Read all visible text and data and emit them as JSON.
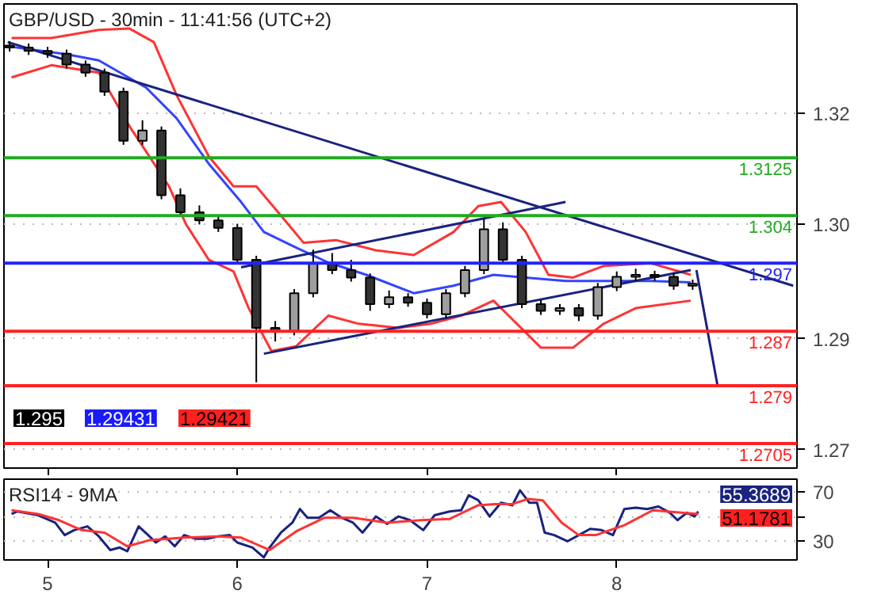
{
  "chart_data": [
    {
      "type": "candlestick",
      "title": "GBP/USD - 30min - 11:41:56 (UTC+2)",
      "x": [
        4.8,
        4.9,
        5.0,
        5.1,
        5.2,
        5.3,
        5.4,
        5.5,
        5.6,
        5.7,
        5.8,
        5.9,
        6.0,
        6.1,
        6.2,
        6.3,
        6.4,
        6.5,
        6.6,
        6.7,
        6.8,
        6.9,
        7.0,
        7.1,
        7.2,
        7.3,
        7.4,
        7.5,
        7.6,
        7.7,
        7.8,
        7.9,
        8.0,
        8.1,
        8.2,
        8.3,
        8.4
      ],
      "ohlc": [
        [
          1.329,
          1.3296,
          1.3281,
          1.3287
        ],
        [
          1.3287,
          1.3293,
          1.3276,
          1.3282
        ],
        [
          1.3282,
          1.3288,
          1.3272,
          1.3278
        ],
        [
          1.3278,
          1.3284,
          1.3256,
          1.3262
        ],
        [
          1.3262,
          1.3268,
          1.3244,
          1.325
        ],
        [
          1.325,
          1.3256,
          1.3216,
          1.3222
        ],
        [
          1.3222,
          1.3228,
          1.3144,
          1.315
        ],
        [
          1.315,
          1.318,
          1.3144,
          1.3165
        ],
        [
          1.3165,
          1.3171,
          1.3064,
          1.307
        ],
        [
          1.307,
          1.308,
          1.3039,
          1.3045
        ],
        [
          1.3045,
          1.3055,
          1.3027,
          1.3033
        ],
        [
          1.3033,
          1.3039,
          1.3016,
          1.3022
        ],
        [
          1.3022,
          1.3028,
          1.2969,
          1.2975
        ],
        [
          1.2975,
          1.2981,
          1.2795,
          1.2875
        ],
        [
          1.2875,
          1.2885,
          1.2855,
          1.287
        ],
        [
          1.287,
          1.2932,
          1.2864,
          1.2926
        ],
        [
          1.2926,
          1.299,
          1.292,
          1.297
        ],
        [
          1.297,
          1.2985,
          1.2954,
          1.296
        ],
        [
          1.296,
          1.2975,
          1.2943,
          1.2949
        ],
        [
          1.2949,
          1.2955,
          1.29,
          1.291
        ],
        [
          1.291,
          1.293,
          1.2904,
          1.292
        ],
        [
          1.292,
          1.2926,
          1.2906,
          1.2912
        ],
        [
          1.2912,
          1.2918,
          1.2889,
          1.2895
        ],
        [
          1.2895,
          1.2932,
          1.2889,
          1.2926
        ],
        [
          1.2926,
          1.2966,
          1.292,
          1.296
        ],
        [
          1.296,
          1.3035,
          1.2954,
          1.302
        ],
        [
          1.302,
          1.303,
          1.2969,
          1.2975
        ],
        [
          1.2975,
          1.2981,
          1.2904,
          1.291
        ],
        [
          1.291,
          1.2916,
          1.2894,
          1.29
        ],
        [
          1.29,
          1.291,
          1.2894,
          1.2904
        ],
        [
          1.2904,
          1.291,
          1.2885,
          1.2893
        ],
        [
          1.2893,
          1.2941,
          1.2887,
          1.2935
        ],
        [
          1.2935,
          1.2958,
          1.2929,
          1.295
        ],
        [
          1.295,
          1.2962,
          1.2944,
          1.2953
        ],
        [
          1.2953,
          1.2959,
          1.2944,
          1.295
        ],
        [
          1.295,
          1.2956,
          1.2931,
          1.2937
        ],
        [
          1.2937,
          1.2946,
          1.2931,
          1.294
        ]
      ],
      "series": [
        {
          "type": "line",
          "color": "#ff3333",
          "x": [
            4.81,
            5.02,
            5.27,
            5.43,
            5.56,
            5.68,
            5.85,
            5.98,
            6.1,
            6.23,
            6.35,
            6.52,
            6.73,
            6.93,
            7.14,
            7.27,
            7.39,
            7.52,
            7.64,
            7.77,
            7.93,
            8.18,
            8.39
          ],
          "values": [
            1.3301,
            1.3301,
            1.3313,
            1.3315,
            1.3295,
            1.3217,
            1.3127,
            1.3083,
            1.3083,
            1.304,
            1.3,
            1.3004,
            1.2989,
            1.2982,
            1.3016,
            1.3054,
            1.306,
            1.3016,
            1.2953,
            1.2949,
            1.2966,
            1.297,
            1.2953
          ]
        },
        {
          "type": "line",
          "color": "#ff3333",
          "x": [
            4.81,
            5.02,
            5.27,
            5.43,
            5.64,
            5.73,
            5.85,
            5.98,
            6.06,
            6.18,
            6.31,
            6.48,
            6.64,
            6.85,
            7.02,
            7.18,
            7.35,
            7.43,
            7.6,
            7.77,
            7.93,
            8.1,
            8.39
          ],
          "values": [
            1.3243,
            1.3261,
            1.325,
            1.3172,
            1.3083,
            1.3027,
            1.2975,
            1.2958,
            1.2904,
            1.2841,
            1.2848,
            1.2893,
            1.2881,
            1.2875,
            1.2881,
            1.2893,
            1.2915,
            1.2893,
            1.2846,
            1.2846,
            1.2881,
            1.2904,
            1.2915
          ]
        },
        {
          "type": "line",
          "color": "#3344ff",
          "x": [
            4.81,
            5.1,
            5.27,
            5.52,
            5.68,
            5.85,
            6.02,
            6.14,
            6.31,
            6.48,
            6.68,
            6.93,
            7.14,
            7.35,
            7.52,
            7.73,
            7.93,
            8.18,
            8.39
          ],
          "values": [
            1.3288,
            1.3277,
            1.3268,
            1.3228,
            1.3183,
            1.3116,
            1.306,
            1.3016,
            1.2993,
            1.2971,
            1.2953,
            1.2926,
            1.2937,
            1.2953,
            1.2949,
            1.2944,
            1.2944,
            1.2944,
            1.2942
          ]
        },
        {
          "type": "line",
          "color": "#1a237e",
          "x": [
            4.79,
            8.93
          ],
          "values": [
            1.3295,
            1.2937
          ]
        },
        {
          "type": "line",
          "color": "#1a237e",
          "x": [
            6.02,
            7.73
          ],
          "values": [
            1.2964,
            1.306
          ]
        },
        {
          "type": "line",
          "color": "#1a237e",
          "x": [
            6.14,
            8.39
          ],
          "values": [
            1.2837,
            1.296
          ]
        },
        {
          "type": "line",
          "color": "#1a237e",
          "x": [
            8.42,
            8.53
          ],
          "values": [
            1.296,
            1.2792
          ]
        }
      ],
      "ref_lines": [
        {
          "axis": "y",
          "value": 1.3125,
          "label": "1.3125",
          "color": "#22aa22"
        },
        {
          "axis": "y",
          "value": 1.304,
          "label": "1.304",
          "color": "#22aa22"
        },
        {
          "axis": "y",
          "value": 1.297,
          "label": "1.297",
          "color": "#2222ff"
        },
        {
          "axis": "y",
          "value": 1.287,
          "label": "1.287",
          "color": "#ff2222"
        },
        {
          "axis": "y",
          "value": 1.279,
          "label": "1.279",
          "color": "#ff2222"
        },
        {
          "axis": "y",
          "value": 1.2705,
          "label": "1.2705",
          "color": "#ff2222"
        }
      ],
      "annotations": [
        "1.295",
        "1.29431",
        "1.29421"
      ],
      "xlim": [
        4.77,
        8.95
      ],
      "ylim": [
        1.2669,
        1.3351
      ],
      "xticks": [
        5,
        6,
        7,
        8
      ],
      "yticks": [
        {
          "value": 1.319,
          "label": "1.32"
        },
        {
          "value": 1.3027,
          "label": "1.30"
        },
        {
          "value": 1.2859,
          "label": "1.29"
        },
        {
          "value": 1.2696,
          "label": "1.27"
        }
      ],
      "tick_labels": "y",
      "grid": "y"
    },
    {
      "type": "line",
      "title": "RSI14 - 9MA",
      "series": [
        {
          "type": "line",
          "color": "#1a237e",
          "x": [
            4.81,
            4.84,
            4.95,
            5.04,
            5.09,
            5.14,
            5.21,
            5.27,
            5.33,
            5.38,
            5.42,
            5.48,
            5.53,
            5.57,
            5.62,
            5.67,
            5.72,
            5.78,
            5.84,
            5.9,
            5.96,
            6.0,
            6.08,
            6.14,
            6.17,
            6.23,
            6.29,
            6.33,
            6.37,
            6.43,
            6.49,
            6.55,
            6.61,
            6.66,
            6.73,
            6.79,
            6.85,
            6.91,
            6.98,
            7.04,
            7.12,
            7.18,
            7.22,
            7.27,
            7.33,
            7.39,
            7.45,
            7.49,
            7.54,
            7.58,
            7.62,
            7.67,
            7.74,
            7.8,
            7.86,
            7.92,
            7.98,
            8.04,
            8.1,
            8.16,
            8.22,
            8.28,
            8.32,
            8.37,
            8.41,
            8.43
          ],
          "values": [
            52,
            54,
            51,
            45,
            35,
            39,
            42,
            34,
            23,
            25,
            22,
            42,
            35,
            29,
            34,
            26,
            35,
            32,
            32,
            34,
            35,
            29,
            25,
            17,
            25,
            37,
            45,
            56,
            49,
            49,
            55,
            49,
            45,
            37,
            50,
            44,
            50,
            47,
            39,
            51,
            54,
            55,
            67,
            63,
            50,
            61,
            59,
            71,
            61,
            61,
            37,
            35,
            30,
            35,
            40,
            39,
            35,
            56,
            57,
            56,
            58,
            53,
            47,
            53,
            50,
            54
          ]
        },
        {
          "type": "line",
          "color": "#ff3333",
          "x": [
            4.81,
            4.95,
            5.06,
            5.18,
            5.3,
            5.42,
            5.54,
            5.72,
            5.9,
            6.02,
            6.17,
            6.31,
            6.46,
            6.61,
            6.79,
            6.97,
            7.12,
            7.27,
            7.36,
            7.45,
            7.53,
            7.61,
            7.71,
            7.8,
            7.89,
            8.04,
            8.19,
            8.34,
            8.43
          ],
          "values": [
            55,
            52,
            47,
            39,
            37,
            26,
            31,
            33,
            34,
            33,
            23,
            38,
            49,
            49,
            45,
            47,
            48,
            59,
            60,
            60,
            64,
            63,
            45,
            35,
            35,
            43,
            55,
            53,
            52
          ]
        }
      ],
      "annotations": [
        "55.3689",
        "51.1781"
      ],
      "xlim": [
        4.77,
        8.95
      ],
      "ylim": [
        15,
        80
      ],
      "xticks": [
        5,
        6,
        7,
        8
      ],
      "yticks": [
        30,
        {
          "value": 50,
          "label": null
        },
        70
      ],
      "grid": "y"
    }
  ]
}
